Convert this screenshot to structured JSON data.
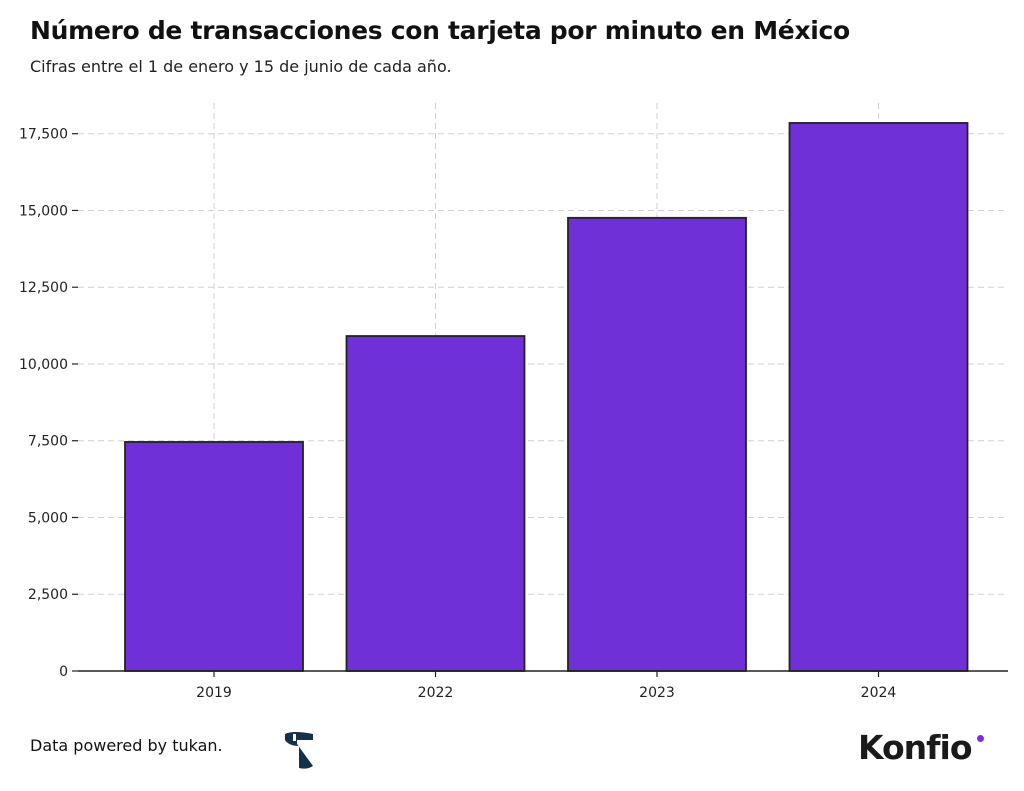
{
  "chart_data": {
    "type": "bar",
    "title": "Número de transacciones con tarjeta por minuto en México",
    "subtitle": "Cifras entre el 1 de enero y 15 de junio de cada año.",
    "categories": [
      "2019",
      "2022",
      "2023",
      "2024"
    ],
    "values": [
      7460,
      10910,
      14760,
      17850
    ],
    "xlabel": "",
    "ylabel": "",
    "ylim": [
      0,
      18500
    ],
    "yticks": [
      0,
      2500,
      5000,
      7500,
      10000,
      12500,
      15000,
      17500
    ],
    "ytick_labels": [
      "0",
      "2,500",
      "5,000",
      "7,500",
      "10,000",
      "12,500",
      "15,000",
      "17,500"
    ],
    "grid": true,
    "bar_color": "#7030d8",
    "edge_color": "#222222"
  },
  "footer": {
    "credit": "Data powered by tukan.",
    "brand": "Konfio",
    "tukan_logo": "tukan-logo-icon",
    "brand_color": "#7b2fe0"
  }
}
